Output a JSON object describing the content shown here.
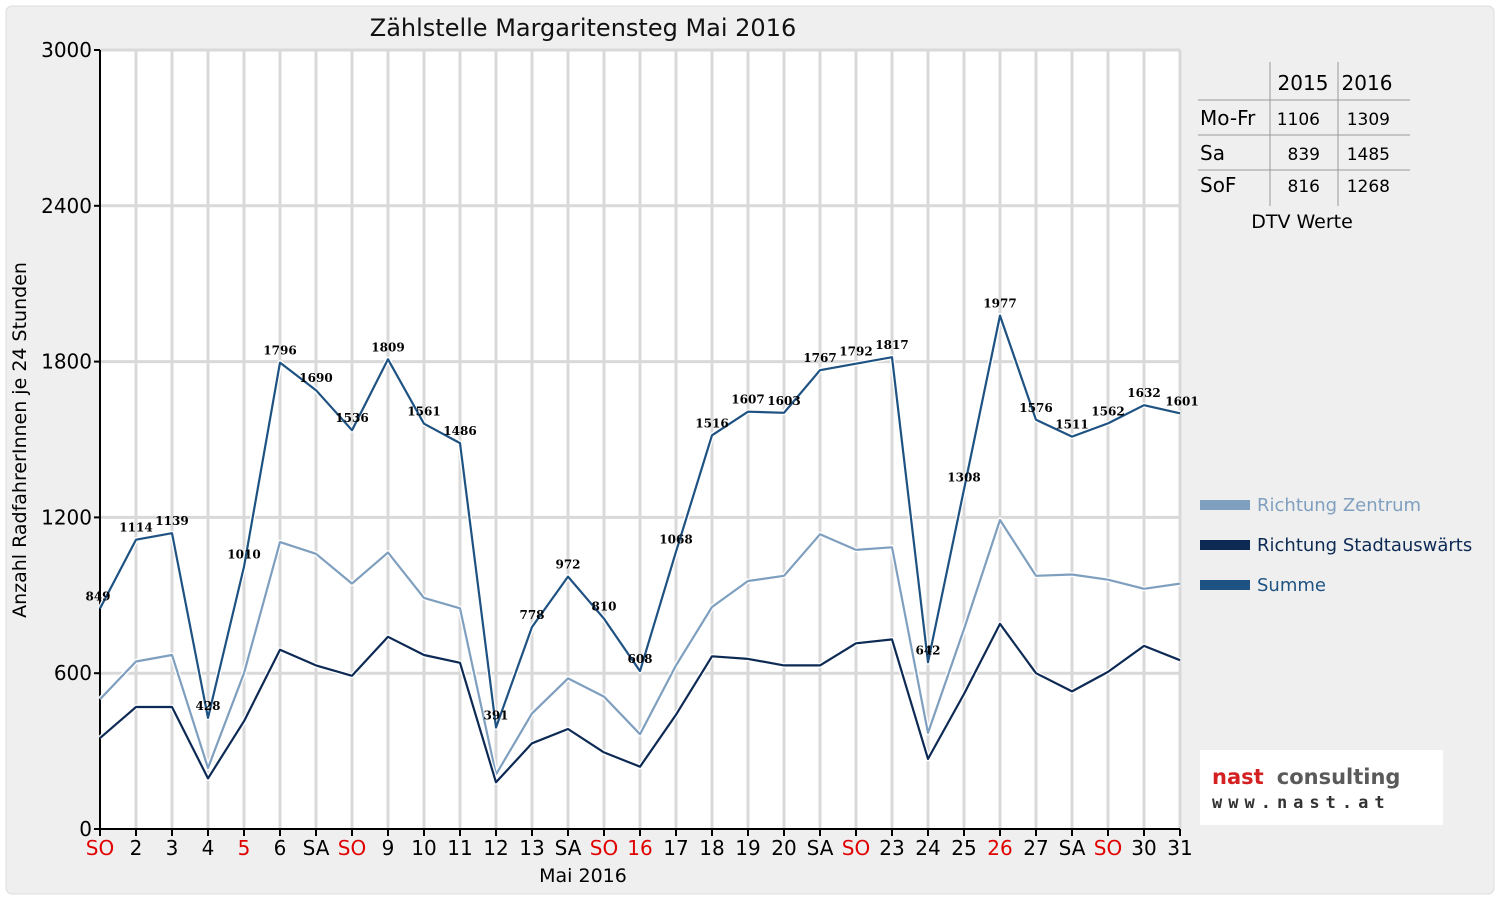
{
  "chart_data": {
    "type": "line",
    "title": "Zählstelle Margaritensteg Mai 2016",
    "xlabel": "Mai 2016",
    "ylabel": "Anzahl RadfahrerInnen je 24 Stunden",
    "ylim": [
      0,
      3000
    ],
    "yticks": [
      0,
      600,
      1200,
      1800,
      2400,
      3000
    ],
    "categories": [
      "SO",
      "2",
      "3",
      "4",
      "5",
      "6",
      "SA",
      "SO",
      "9",
      "10",
      "11",
      "12",
      "13",
      "SA",
      "SO",
      "16",
      "17",
      "18",
      "19",
      "20",
      "SA",
      "SO",
      "23",
      "24",
      "25",
      "26",
      "27",
      "SA",
      "SO",
      "30",
      "31"
    ],
    "category_colors": [
      "#e00000",
      "#000000",
      "#000000",
      "#000000",
      "#e00000",
      "#000000",
      "#000000",
      "#e00000",
      "#000000",
      "#000000",
      "#000000",
      "#000000",
      "#000000",
      "#000000",
      "#e00000",
      "#e00000",
      "#000000",
      "#000000",
      "#000000",
      "#000000",
      "#000000",
      "#e00000",
      "#000000",
      "#000000",
      "#000000",
      "#e00000",
      "#000000",
      "#000000",
      "#e00000",
      "#000000",
      "#000000"
    ],
    "grid": true,
    "legend_position": "right",
    "series": [
      {
        "name": "Richtung Zentrum",
        "color": "#7f9fbf",
        "values": [
          500,
          645,
          670,
          235,
          600,
          1105,
          1060,
          945,
          1065,
          890,
          850,
          210,
          445,
          580,
          510,
          365,
          630,
          855,
          955,
          975,
          1135,
          1075,
          1085,
          370,
          770,
          1190,
          975,
          980,
          960,
          925,
          945
        ]
      },
      {
        "name": "Richtung Stadtauswärts",
        "color": "#0d2a55",
        "values": [
          350,
          470,
          470,
          195,
          415,
          690,
          630,
          590,
          740,
          670,
          640,
          180,
          330,
          385,
          295,
          240,
          440,
          665,
          655,
          630,
          630,
          715,
          730,
          270,
          520,
          790,
          600,
          530,
          605,
          705,
          650
        ]
      },
      {
        "name": "Summe",
        "color": "#1e5282",
        "values": [
          849,
          1114,
          1139,
          428,
          1010,
          1796,
          1690,
          1536,
          1809,
          1561,
          1486,
          391,
          778,
          972,
          810,
          608,
          1068,
          1516,
          1607,
          1603,
          1767,
          1792,
          1817,
          642,
          1308,
          1977,
          1576,
          1511,
          1562,
          1632,
          1601
        ],
        "data_labels": [
          "849",
          "1114",
          "1139",
          "428",
          "1010",
          "1796",
          "1690",
          "1536",
          "1809",
          "1561",
          "1486",
          "391",
          "778",
          "972",
          "810",
          "608",
          "1068",
          "1516",
          "1607",
          "1603",
          "1767",
          "1792",
          "1817",
          "642",
          "1308",
          "1977",
          "1576",
          "1511",
          "1562",
          "1632",
          "1601"
        ]
      }
    ]
  },
  "dtv_table": {
    "caption": "DTV Werte",
    "headers": [
      "",
      "2015",
      "2016"
    ],
    "rows": [
      {
        "label": "Mo-Fr",
        "v2015": "1106",
        "v2016": "1309"
      },
      {
        "label": "Sa",
        "v2015": "839",
        "v2016": "1485"
      },
      {
        "label": "SoF",
        "v2015": "816",
        "v2016": "1268"
      }
    ]
  },
  "branding": {
    "name_part1": "nast",
    "name_part2": "consulting",
    "url": "www.nast.at",
    "color1": "#d42020",
    "color2": "#5a5a5a"
  }
}
